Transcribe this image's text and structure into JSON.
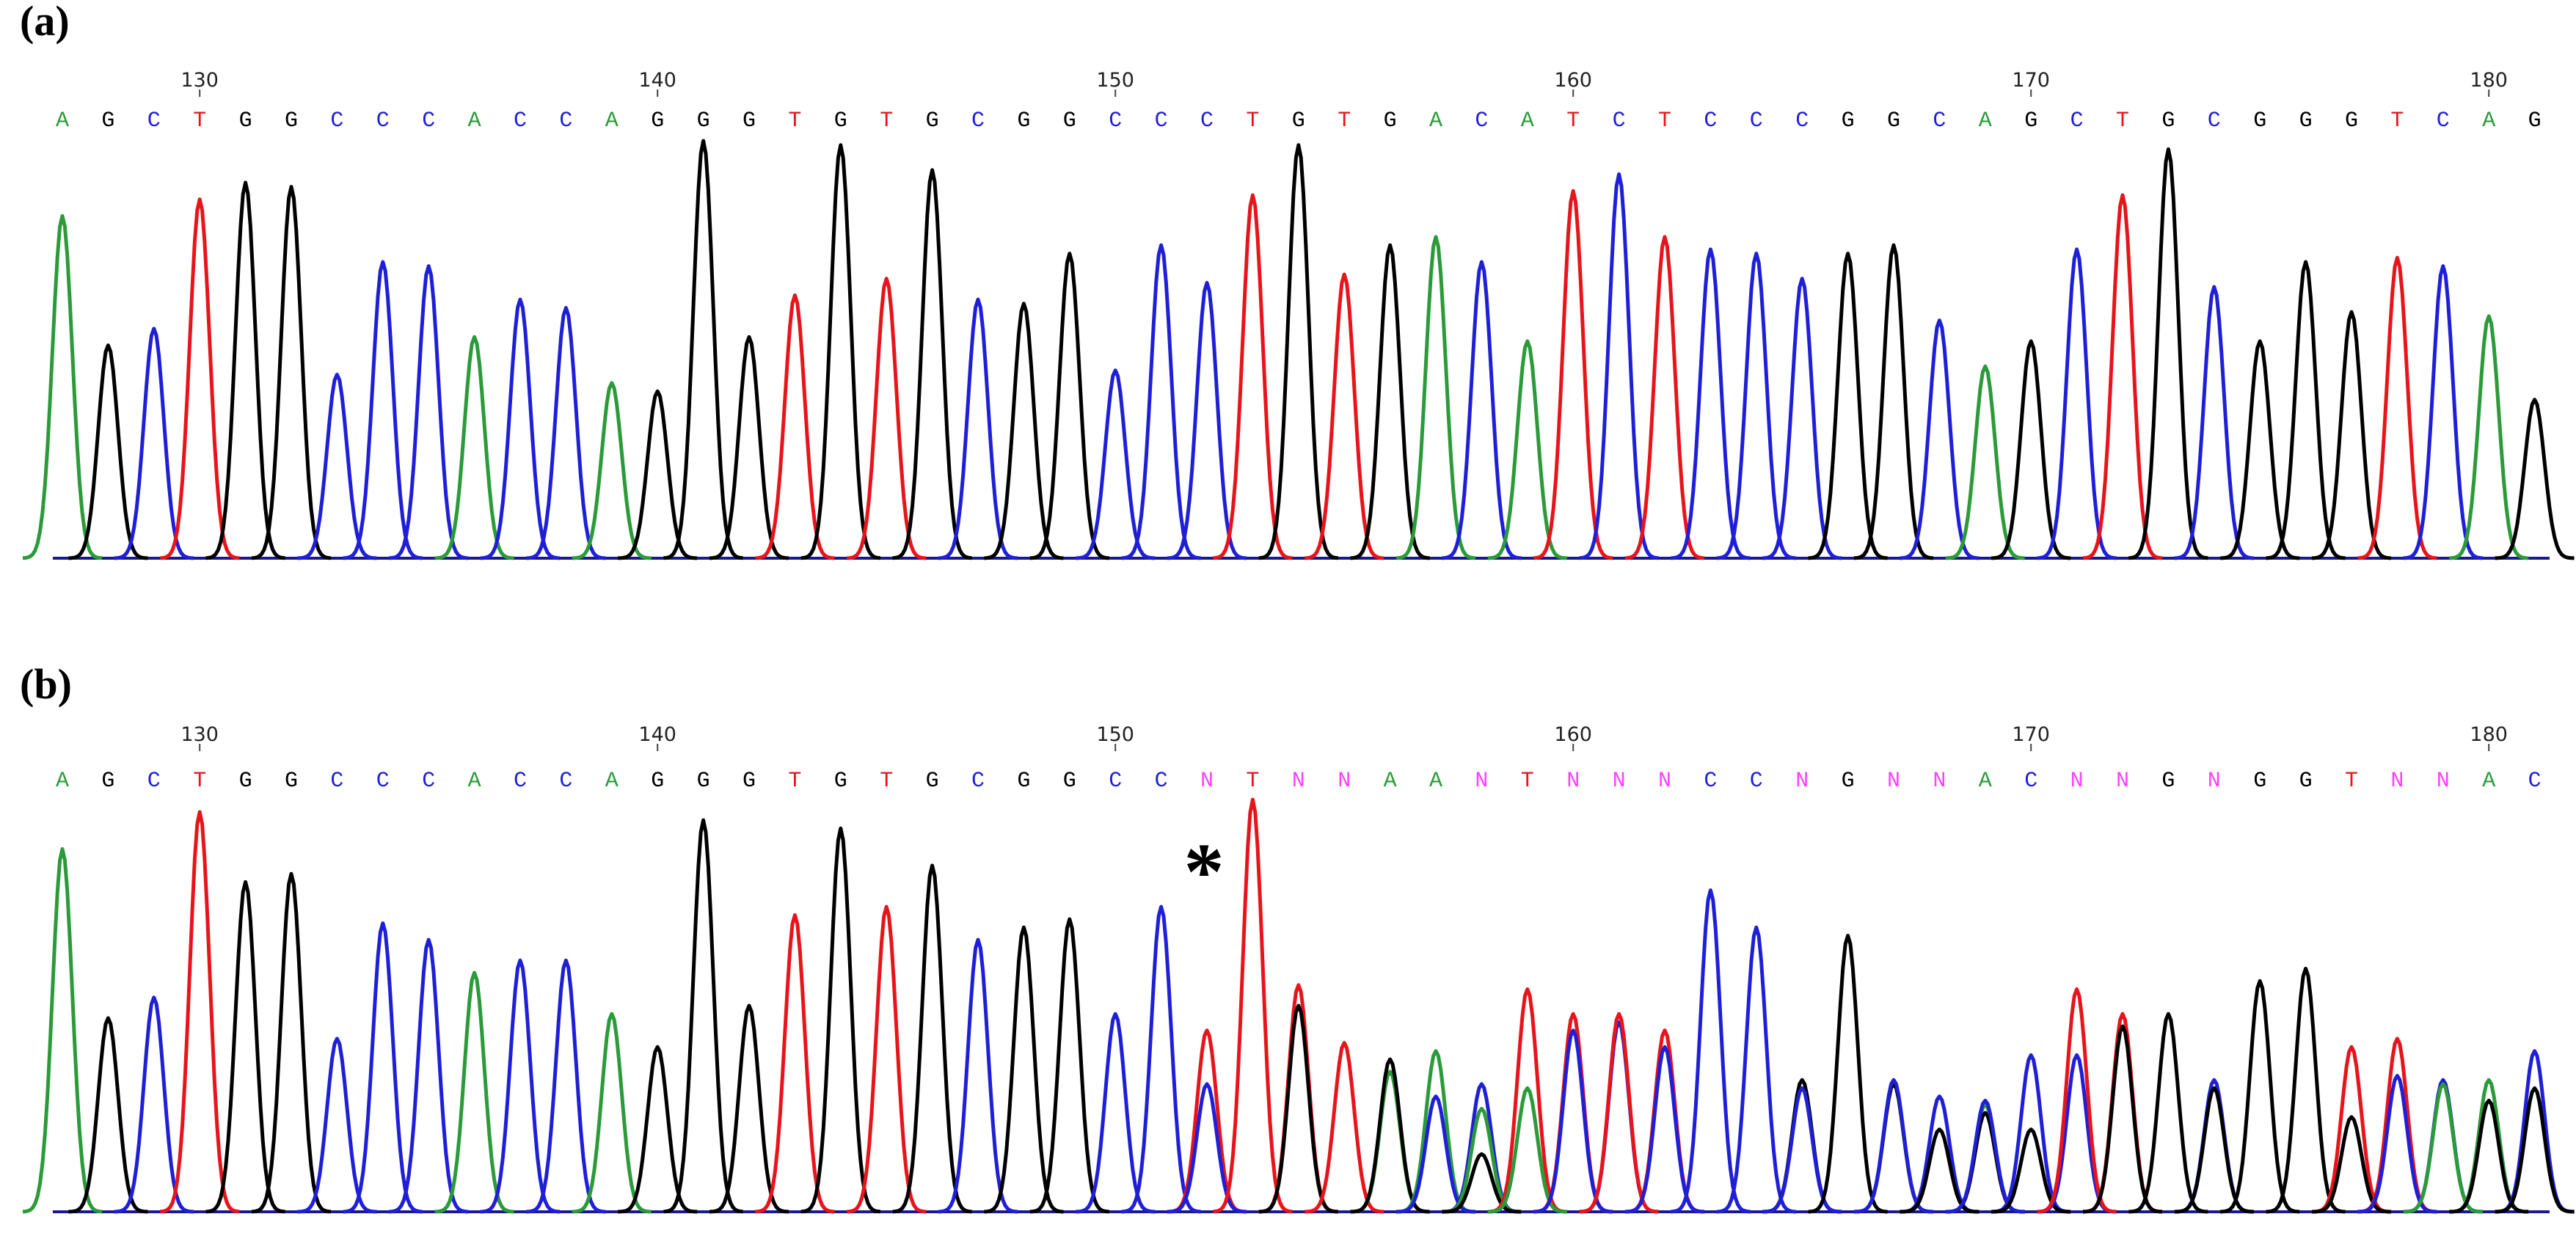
{
  "colors": {
    "A": "#2b9b3a",
    "C": "#1f1fd8",
    "G": "#000000",
    "T": "#e8141b",
    "N": "#ff40ff"
  },
  "annotation": "*",
  "panels": [
    {
      "label": "(a)",
      "position_ticks": [
        130,
        140,
        150,
        160,
        170,
        180
      ],
      "bases": [
        "A",
        "G",
        "C",
        "T",
        "G",
        "G",
        "C",
        "C",
        "C",
        "A",
        "C",
        "C",
        "A",
        "G",
        "G",
        "G",
        "T",
        "G",
        "T",
        "G",
        "C",
        "G",
        "G",
        "C",
        "C",
        "C",
        "T",
        "G",
        "T",
        "G",
        "A",
        "C",
        "A",
        "T",
        "C",
        "T",
        "C",
        "C",
        "C",
        "G",
        "G",
        "C",
        "A",
        "G",
        "C",
        "T",
        "G",
        "C",
        "G",
        "G",
        "G",
        "T",
        "C",
        "A",
        "G"
      ],
      "signals": [
        {
          "A": 82
        },
        {
          "G": 51
        },
        {
          "C": 55
        },
        {
          "T": 86
        },
        {
          "G": 90
        },
        {
          "G": 89
        },
        {
          "C": 44
        },
        {
          "C": 71
        },
        {
          "C": 70
        },
        {
          "A": 53
        },
        {
          "C": 62
        },
        {
          "C": 60
        },
        {
          "A": 42
        },
        {
          "G": 40
        },
        {
          "G": 100
        },
        {
          "G": 53
        },
        {
          "T": 63
        },
        {
          "G": 99
        },
        {
          "T": 67
        },
        {
          "G": 93
        },
        {
          "C": 62
        },
        {
          "G": 61
        },
        {
          "G": 73
        },
        {
          "C": 45
        },
        {
          "C": 75
        },
        {
          "C": 66
        },
        {
          "T": 87
        },
        {
          "G": 99
        },
        {
          "T": 68
        },
        {
          "G": 75
        },
        {
          "A": 77
        },
        {
          "C": 71
        },
        {
          "A": 52
        },
        {
          "T": 88
        },
        {
          "C": 92
        },
        {
          "T": 77
        },
        {
          "C": 74
        },
        {
          "C": 73
        },
        {
          "C": 67
        },
        {
          "G": 73
        },
        {
          "G": 75
        },
        {
          "C": 57
        },
        {
          "A": 46
        },
        {
          "G": 52
        },
        {
          "C": 74
        },
        {
          "T": 87
        },
        {
          "G": 98
        },
        {
          "C": 65
        },
        {
          "G": 52
        },
        {
          "G": 71
        },
        {
          "G": 59
        },
        {
          "T": 72
        },
        {
          "C": 70
        },
        {
          "A": 58
        },
        {
          "G": 38
        }
      ]
    },
    {
      "label": "(b)",
      "position_ticks": [
        130,
        140,
        150,
        160,
        170,
        180
      ],
      "bases": [
        "A",
        "G",
        "C",
        "T",
        "G",
        "G",
        "C",
        "C",
        "C",
        "A",
        "C",
        "C",
        "A",
        "G",
        "G",
        "G",
        "T",
        "G",
        "T",
        "G",
        "C",
        "G",
        "G",
        "C",
        "C",
        "N",
        "T",
        "N",
        "N",
        "A",
        "A",
        "N",
        "T",
        "N",
        "N",
        "N",
        "C",
        "C",
        "N",
        "G",
        "N",
        "N",
        "A",
        "C",
        "N",
        "N",
        "G",
        "N",
        "G",
        "G",
        "T",
        "N",
        "N",
        "A",
        "C"
      ],
      "signals": [
        {
          "A": 88
        },
        {
          "G": 47
        },
        {
          "C": 52
        },
        {
          "T": 97
        },
        {
          "G": 80
        },
        {
          "G": 82
        },
        {
          "C": 42
        },
        {
          "C": 70
        },
        {
          "C": 66
        },
        {
          "A": 58
        },
        {
          "C": 61
        },
        {
          "C": 61
        },
        {
          "A": 48
        },
        {
          "G": 40
        },
        {
          "G": 95
        },
        {
          "G": 50
        },
        {
          "T": 72
        },
        {
          "G": 93
        },
        {
          "T": 74
        },
        {
          "G": 84
        },
        {
          "C": 66
        },
        {
          "G": 69
        },
        {
          "G": 71
        },
        {
          "C": 48
        },
        {
          "C": 74
        },
        {
          "T": 44,
          "C": 31
        },
        {
          "T": 100
        },
        {
          "T": 55,
          "G": 50
        },
        {
          "T": 41
        },
        {
          "A": 34,
          "G": 37
        },
        {
          "A": 39,
          "C": 28
        },
        {
          "C": 31,
          "A": 25,
          "G": 14
        },
        {
          "T": 54,
          "A": 30
        },
        {
          "T": 48,
          "C": 44
        },
        {
          "C": 46,
          "T": 48
        },
        {
          "T": 44,
          "C": 40
        },
        {
          "C": 78
        },
        {
          "C": 69
        },
        {
          "G": 32,
          "C": 30
        },
        {
          "G": 67
        },
        {
          "G": 31,
          "C": 32
        },
        {
          "C": 28,
          "G": 20
        },
        {
          "A": 26,
          "G": 24,
          "C": 27
        },
        {
          "C": 38,
          "G": 20
        },
        {
          "C": 38,
          "T": 54
        },
        {
          "T": 48,
          "G": 45
        },
        {
          "G": 48
        },
        {
          "C": 32,
          "G": 30
        },
        {
          "G": 56
        },
        {
          "G": 59
        },
        {
          "T": 40,
          "G": 23
        },
        {
          "T": 42,
          "C": 33
        },
        {
          "C": 32,
          "A": 31
        },
        {
          "A": 32,
          "G": 27
        },
        {
          "C": 39,
          "G": 30
        }
      ]
    }
  ]
}
